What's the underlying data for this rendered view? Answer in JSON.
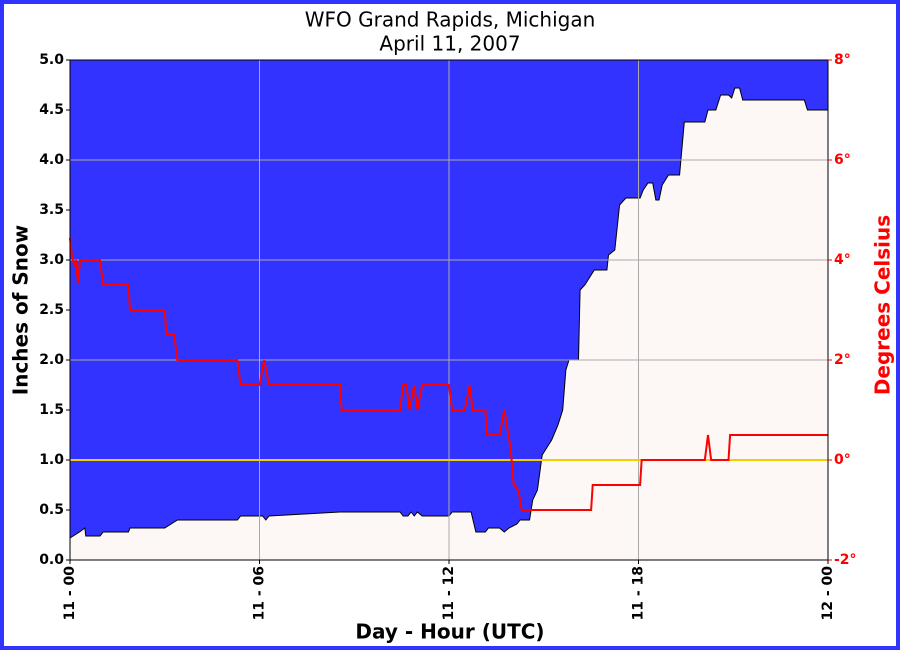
{
  "chart_data": {
    "type": "line",
    "title": "WFO Grand Rapids, Michigan",
    "subtitle": "April 11, 2007",
    "x_label": "Day - Hour (UTC)",
    "y_label": "Inches of Snow",
    "y2_label": "Degrees Celsius",
    "xlim": [
      0,
      24
    ],
    "xticks": [
      {
        "value": 0,
        "label": "11 - 00"
      },
      {
        "value": 6,
        "label": "11 - 06"
      },
      {
        "value": 12,
        "label": "11 - 12"
      },
      {
        "value": 18,
        "label": "11 - 18"
      },
      {
        "value": 24,
        "label": "12 - 00"
      }
    ],
    "ylim": [
      0,
      5
    ],
    "yticks": [
      {
        "value": 0,
        "label": "0.0"
      },
      0.5,
      {
        "value": 1,
        "label": "1.0"
      },
      1.5,
      {
        "value": 2,
        "label": "2.0"
      },
      2.5,
      {
        "value": 3,
        "label": "3.0"
      },
      3.5,
      {
        "value": 4,
        "label": "4.0"
      },
      4.5,
      {
        "value": 5,
        "label": "5.0"
      }
    ],
    "y2lim": [
      -2,
      8
    ],
    "y2ticks": [
      {
        "value": -2,
        "label": "-2°"
      },
      {
        "value": 0,
        "label": "0°"
      },
      {
        "value": 2,
        "label": "2°"
      },
      {
        "value": 4,
        "label": "4°"
      },
      {
        "value": 6,
        "label": "6°"
      },
      {
        "value": 8,
        "label": "8°"
      }
    ],
    "grid": true,
    "plot_background": "#3333ff",
    "reference_line": {
      "value": 0,
      "axis": "y2",
      "color": "#f0d000"
    },
    "series": [
      {
        "type": "area",
        "color": "#fdf8f6",
        "x": [
          0,
          0.3,
          0.47,
          0.5,
          0.95,
          1.05,
          1.85,
          1.9,
          3.0,
          3.4,
          5.3,
          5.4,
          6.1,
          6.2,
          6.3,
          8.55,
          10.45,
          10.55,
          10.7,
          10.8,
          10.9,
          11.0,
          11.15,
          12.0,
          12.1,
          12.7,
          12.85,
          13.15,
          13.25,
          13.6,
          13.75,
          13.9,
          14.15,
          14.25,
          14.55,
          14.65,
          14.8,
          14.95,
          15.15,
          15.25,
          15.45,
          15.6,
          15.7,
          15.8,
          16.1,
          16.15,
          16.3,
          16.5,
          16.6,
          17.0,
          17.05,
          17.25,
          17.35,
          17.4,
          17.6,
          18.05,
          18.15,
          18.3,
          18.45,
          18.55,
          18.65,
          18.75,
          18.95,
          19.3,
          19.45,
          20.1,
          20.2,
          20.45,
          20.6,
          20.85,
          20.95,
          21.05,
          21.2,
          21.3,
          23.25,
          23.35,
          24
        ],
        "values": [
          0.22,
          0.28,
          0.32,
          0.24,
          0.24,
          0.28,
          0.28,
          0.32,
          0.32,
          0.4,
          0.4,
          0.44,
          0.44,
          0.4,
          0.44,
          0.48,
          0.48,
          0.44,
          0.44,
          0.48,
          0.44,
          0.48,
          0.44,
          0.44,
          0.48,
          0.48,
          0.28,
          0.28,
          0.32,
          0.32,
          0.28,
          0.32,
          0.36,
          0.4,
          0.4,
          0.6,
          0.7,
          1.05,
          1.15,
          1.2,
          1.35,
          1.5,
          1.9,
          2.0,
          2.0,
          2.7,
          2.75,
          2.85,
          2.9,
          2.9,
          3.05,
          3.1,
          3.4,
          3.55,
          3.62,
          3.62,
          3.7,
          3.77,
          3.77,
          3.6,
          3.6,
          3.75,
          3.85,
          3.85,
          4.38,
          4.38,
          4.5,
          4.5,
          4.65,
          4.65,
          4.62,
          4.72,
          4.72,
          4.6,
          4.6,
          4.5,
          4.5
        ]
      },
      {
        "type": "line",
        "color": "#ff0000",
        "axis": "y2",
        "x": [
          0,
          0.06,
          0.13,
          0.19,
          0.25,
          0.32,
          0.95,
          1.05,
          1.85,
          1.9,
          3.0,
          3.05,
          3.3,
          3.4,
          5.3,
          5.4,
          6.0,
          6.15,
          6.3,
          8.55,
          8.6,
          10.45,
          10.55,
          10.65,
          10.75,
          10.9,
          11.0,
          11.15,
          12.0,
          12.1,
          12.5,
          12.65,
          12.75,
          13.15,
          13.2,
          13.6,
          13.75,
          13.95,
          14.05,
          14.2,
          14.3,
          16.5,
          16.55,
          18.05,
          18.1,
          20.1,
          20.2,
          20.3,
          20.85,
          20.9,
          24
        ],
        "values": [
          4.44,
          4.1,
          3.9,
          4.0,
          3.54,
          4.0,
          4.0,
          3.5,
          3.5,
          3.0,
          3.0,
          2.5,
          2.5,
          2.0,
          2.0,
          1.5,
          1.5,
          2.0,
          1.5,
          1.5,
          1.0,
          1.0,
          1.5,
          1.5,
          1.0,
          1.5,
          1.0,
          1.5,
          1.5,
          1.0,
          1.0,
          1.5,
          1.0,
          1.0,
          0.5,
          0.5,
          1.0,
          0.24,
          -0.5,
          -0.6,
          -1.0,
          -1.0,
          -0.5,
          -0.5,
          0.0,
          0.0,
          0.5,
          0.0,
          0.0,
          0.5,
          0.5
        ]
      }
    ]
  }
}
